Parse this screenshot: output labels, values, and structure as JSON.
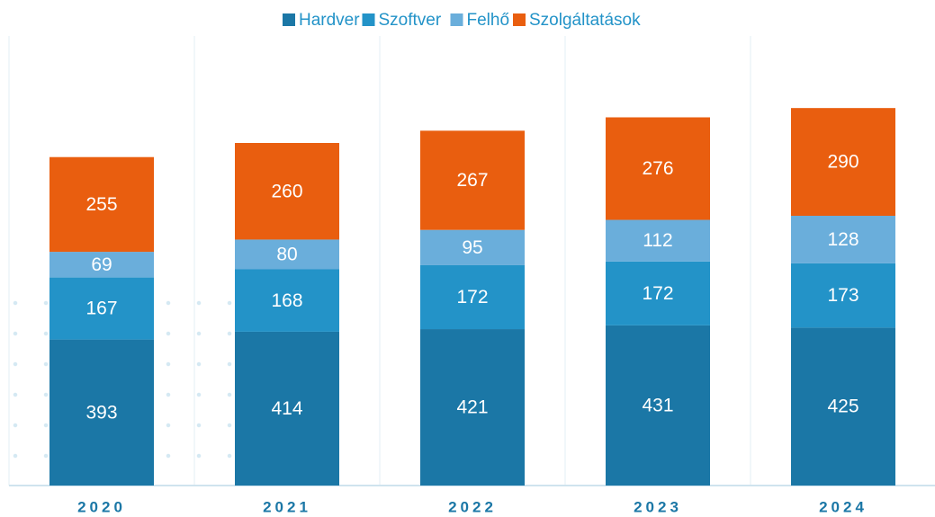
{
  "chart_data": {
    "type": "stacked_bar",
    "categories": [
      "2020",
      "2021",
      "2022",
      "2023",
      "2024"
    ],
    "series": [
      {
        "name": "Hardver",
        "color": "#1b77a6",
        "values": [
          393,
          414,
          421,
          431,
          425
        ]
      },
      {
        "name": "Szoftver",
        "color": "#2393c8",
        "values": [
          167,
          168,
          172,
          172,
          173
        ]
      },
      {
        "name": "Felhő",
        "color": "#6aaedb",
        "values": [
          69,
          80,
          95,
          112,
          128
        ]
      },
      {
        "name": "Szolgáltatások",
        "color": "#e95e0f",
        "values": [
          255,
          260,
          267,
          276,
          290
        ]
      }
    ],
    "ylim": [
      0,
      1210
    ],
    "legend": "top"
  }
}
